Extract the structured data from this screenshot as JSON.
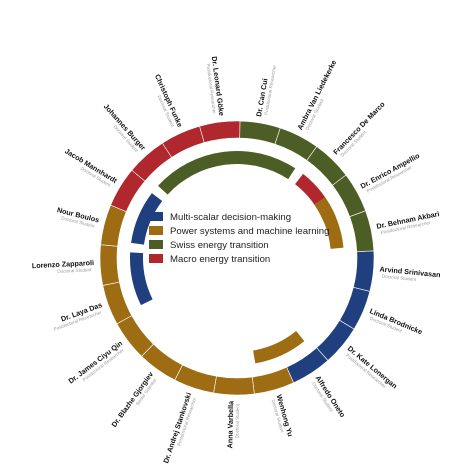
{
  "colors": {
    "multi_scalar": "#1f3f7f",
    "power_systems": "#9e6c12",
    "swiss_energy": "#4c5e25",
    "macro_energy": "#b0282e"
  },
  "legend": [
    {
      "label": "Multi-scalar decision-making",
      "color": "#1f3f7f"
    },
    {
      "label": "Power systems and machine learning",
      "color": "#9e6c12"
    },
    {
      "label": "Swiss energy transition",
      "color": "#4c5e25"
    },
    {
      "label": "Macro energy transition",
      "color": "#b0282e"
    }
  ],
  "members": [
    {
      "name": "Arvind Srinivasan",
      "role": "Doctoral Student",
      "group": "multi_scalar"
    },
    {
      "name": "Linda Brodnicke",
      "role": "Doctoral Student",
      "group": "multi_scalar"
    },
    {
      "name": "Dr. Kate Lonergan",
      "role": "Postdoctoral Researcher",
      "group": "multi_scalar"
    },
    {
      "name": "Alfredo Oneto",
      "role": "Doctoral Student",
      "group": "multi_scalar"
    },
    {
      "name": "Wenhong Yu",
      "role": "Doctoral Student",
      "group": "power_systems"
    },
    {
      "name": "Anna Varbella",
      "role": "Doctoral Student",
      "group": "power_systems"
    },
    {
      "name": "Dr. Andrej Stankovski",
      "role": "Postdoctoral Researcher",
      "group": "power_systems"
    },
    {
      "name": "Dr. Blazhe Gjorgiev",
      "role": "Senior Scientist",
      "group": "power_systems"
    },
    {
      "name": "Dr. James Ciyu Qin",
      "role": "Postdoctoral Researcher",
      "group": "power_systems"
    },
    {
      "name": "Dr. Laya Das",
      "role": "Postdoctoral Researcher",
      "group": "power_systems"
    },
    {
      "name": "Lorenzo Zapparoli",
      "role": "Doctoral Student",
      "group": "power_systems"
    },
    {
      "name": "Nour Boulos",
      "role": "Doctoral Student",
      "group": "power_systems"
    },
    {
      "name": "Jacob Mannhardt",
      "role": "Doctoral Student",
      "group": "macro_energy"
    },
    {
      "name": "Johannes Burger",
      "role": "Doctoral Student",
      "group": "macro_energy"
    },
    {
      "name": "Christoph Funke",
      "role": "Doctoral Student",
      "group": "macro_energy"
    },
    {
      "name": "Dr. Leonard Göke",
      "role": "Postdoctoral Researcher",
      "group": "macro_energy"
    },
    {
      "name": "Dr. Can Cui",
      "role": "Postdoctoral Researcher",
      "group": "swiss_energy"
    },
    {
      "name": "Ambra Van Liedekerke",
      "role": "Doctoral Student",
      "group": "swiss_energy"
    },
    {
      "name": "Francesco De Marco",
      "role": "Doctoral Student",
      "group": "swiss_energy"
    },
    {
      "name": "Dr. Enrico Ampellio",
      "role": "Postdoctoral Researcher",
      "group": "swiss_energy"
    },
    {
      "name": "Dr. Behnam Akbari",
      "role": "Postdoctoral Researcher",
      "group": "swiss_energy"
    }
  ],
  "inner_arcs": [
    {
      "group": "swiss_energy",
      "start_member": 13,
      "end_member": 17
    },
    {
      "group": "macro_energy",
      "start_member": 18,
      "end_member": 19
    },
    {
      "group": "power_systems",
      "start_member": 19,
      "end_member": 20
    },
    {
      "group": "multi_scalar",
      "start_member": 11,
      "end_member": 12
    },
    {
      "group": "multi_scalar",
      "start_member": 9,
      "end_member": 10
    },
    {
      "group": "power_systems",
      "start_member": 3,
      "end_member": 4
    }
  ]
}
